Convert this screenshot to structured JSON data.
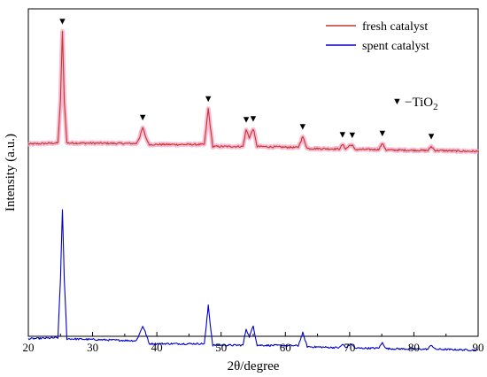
{
  "chart_data": {
    "type": "line",
    "xlabel": "2θ/degree",
    "ylabel": "Intensity (a.u.)",
    "xlim": [
      20,
      90
    ],
    "x_ticks": [
      20,
      30,
      40,
      50,
      60,
      70,
      80,
      90
    ],
    "y_ticks_shown": false,
    "grid": false,
    "legend_position": "top-right",
    "series": [
      {
        "name": "fresh catalyst",
        "color": "#c0392b",
        "halo_color": "#f5a3c7",
        "baseline": 0.0,
        "x": [
          20,
          24.6,
          25.0,
          25.3,
          25.6,
          26.0,
          36.8,
          37.3,
          37.8,
          38.3,
          38.8,
          47.4,
          47.8,
          48.0,
          48.3,
          48.7,
          53.4,
          53.9,
          54.4,
          55.0,
          55.6,
          62.0,
          62.7,
          63.4,
          68.4,
          68.9,
          69.4,
          70.0,
          70.4,
          70.8,
          74.5,
          75.1,
          75.7,
          82.2,
          82.7,
          83.3,
          90
        ],
        "y": [
          1.3,
          1.5,
          10.0,
          24.0,
          10.0,
          1.5,
          1.4,
          2.6,
          4.6,
          2.6,
          1.2,
          1.2,
          6.0,
          8.4,
          5.0,
          0.8,
          0.8,
          4.2,
          2.6,
          4.4,
          0.8,
          0.6,
          2.8,
          0.4,
          0.3,
          1.2,
          0.3,
          1.0,
          1.1,
          0.2,
          0.2,
          1.4,
          0.1,
          0.0,
          0.8,
          0.0,
          -0.2
        ]
      },
      {
        "name": "spent catalyst",
        "color": "#0000cc",
        "halo_color": "",
        "baseline": -40.0,
        "x": [
          20,
          24.6,
          25.0,
          25.3,
          25.6,
          26.0,
          36.8,
          37.3,
          37.8,
          38.3,
          38.8,
          47.4,
          47.8,
          48.0,
          48.3,
          48.7,
          53.4,
          53.9,
          54.4,
          55.0,
          55.6,
          62.0,
          62.7,
          63.4,
          68.4,
          68.9,
          69.4,
          70.0,
          70.4,
          70.8,
          74.5,
          75.1,
          75.7,
          82.2,
          82.7,
          83.3,
          90
        ],
        "y": [
          2.0,
          2.2,
          14.0,
          28.0,
          14.0,
          2.0,
          1.6,
          3.0,
          4.6,
          3.0,
          1.0,
          1.0,
          6.0,
          8.8,
          5.0,
          0.7,
          0.7,
          4.0,
          2.4,
          4.6,
          0.7,
          0.6,
          3.2,
          0.4,
          0.2,
          0.9,
          0.2,
          0.8,
          0.9,
          0.1,
          0.1,
          1.2,
          0.0,
          -0.1,
          0.8,
          -0.1,
          -0.3
        ]
      }
    ],
    "markers": {
      "symbol": "▼",
      "x": [
        25.3,
        37.8,
        48.0,
        53.9,
        55.0,
        62.7,
        68.9,
        70.4,
        75.1,
        82.7
      ]
    },
    "annotation": {
      "symbol": "▼",
      "text": "−TiO",
      "subscript": "2"
    }
  }
}
